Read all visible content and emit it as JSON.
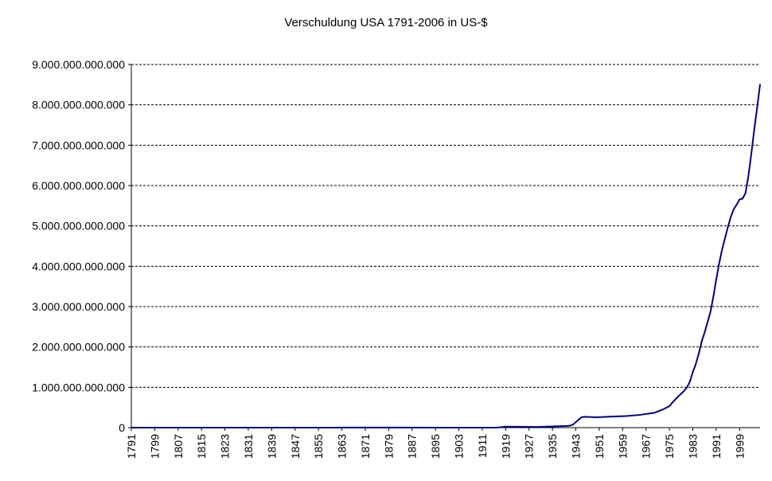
{
  "chart_data": {
    "type": "line",
    "title": "Verschuldung USA 1791-2006 in US-$",
    "xlabel": "",
    "ylabel": "",
    "x_range": [
      1791,
      2006
    ],
    "ylim": [
      0,
      9000000000000
    ],
    "y_ticks": [
      0,
      1000000000000,
      2000000000000,
      3000000000000,
      4000000000000,
      5000000000000,
      6000000000000,
      7000000000000,
      8000000000000,
      9000000000000
    ],
    "y_tick_labels": [
      "0",
      "1.000.000.000.000",
      "2.000.000.000.000",
      "3.000.000.000.000",
      "4.000.000.000.000",
      "5.000.000.000.000",
      "6.000.000.000.000",
      "7.000.000.000.000",
      "8.000.000.000.000",
      "9.000.000.000.000"
    ],
    "x_tick_labels": [
      "1791",
      "1799",
      "1807",
      "1815",
      "1823",
      "1831",
      "1839",
      "1847",
      "1855",
      "1863",
      "1871",
      "1879",
      "1887",
      "1895",
      "1903",
      "1911",
      "1919",
      "1927",
      "1935",
      "1943",
      "1951",
      "1959",
      "1967",
      "1975",
      "1983",
      "1991",
      "1999"
    ],
    "grid": "horizontal dashed",
    "legend": "none",
    "line_color": "#000080",
    "series": [
      {
        "points": [
          [
            1791,
            75000000
          ],
          [
            1800,
            83000000
          ],
          [
            1815,
            127000000
          ],
          [
            1835,
            34000
          ],
          [
            1860,
            65000000
          ],
          [
            1865,
            2680000000
          ],
          [
            1880,
            2090000000
          ],
          [
            1893,
            961000000
          ],
          [
            1910,
            1150000000
          ],
          [
            1916,
            1200000000
          ],
          [
            1919,
            25500000000
          ],
          [
            1930,
            16200000000
          ],
          [
            1935,
            28700000000
          ],
          [
            1940,
            43000000000
          ],
          [
            1941,
            49000000000
          ],
          [
            1942,
            72000000000
          ],
          [
            1943,
            137000000000
          ],
          [
            1944,
            201000000000
          ],
          [
            1945,
            259000000000
          ],
          [
            1946,
            269000000000
          ],
          [
            1950,
            257000000000
          ],
          [
            1955,
            274000000000
          ],
          [
            1960,
            286000000000
          ],
          [
            1965,
            317000000000
          ],
          [
            1970,
            371000000000
          ],
          [
            1973,
            458000000000
          ],
          [
            1975,
            533000000000
          ],
          [
            1976,
            620000000000
          ],
          [
            1978,
            772000000000
          ],
          [
            1980,
            908000000000
          ],
          [
            1981,
            998000000000
          ],
          [
            1982,
            1140000000000
          ],
          [
            1983,
            1377000000000
          ],
          [
            1984,
            1572000000000
          ],
          [
            1985,
            1823000000000
          ],
          [
            1986,
            2125000000000
          ],
          [
            1987,
            2350000000000
          ],
          [
            1988,
            2602000000000
          ],
          [
            1989,
            2857000000000
          ],
          [
            1990,
            3233000000000
          ],
          [
            1991,
            3665000000000
          ],
          [
            1992,
            4065000000000
          ],
          [
            1993,
            4411000000000
          ],
          [
            1994,
            4693000000000
          ],
          [
            1995,
            4974000000000
          ],
          [
            1996,
            5225000000000
          ],
          [
            1997,
            5413000000000
          ],
          [
            1998,
            5526000000000
          ],
          [
            1999,
            5656000000000
          ],
          [
            2000,
            5674000000000
          ],
          [
            2001,
            5807000000000
          ],
          [
            2002,
            6228000000000
          ],
          [
            2003,
            6783000000000
          ],
          [
            2004,
            7379000000000
          ],
          [
            2005,
            7933000000000
          ],
          [
            2006,
            8507000000000
          ]
        ]
      }
    ]
  }
}
